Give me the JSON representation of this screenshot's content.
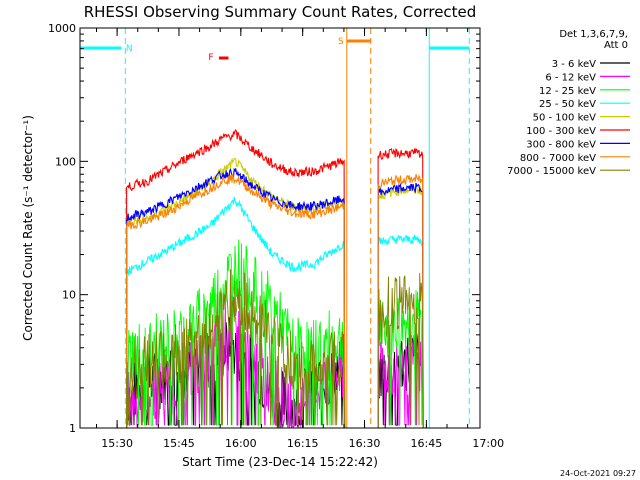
{
  "chart_data": {
    "type": "line",
    "title": "RHESSI Observing Summary Count Rates, Corrected",
    "xlabel": "Start Time (23-Dec-14 15:22:42)",
    "ylabel": "Corrected Count Rate (s⁻¹ detector⁻¹)",
    "yscale": "log",
    "ylim": [
      1,
      1000
    ],
    "xlim_minutes": [
      -1.7,
      95.3
    ],
    "x_tick_labels": [
      "15:30",
      "15:45",
      "16:00",
      "16:15",
      "16:30",
      "16:45",
      "17:00"
    ],
    "x_tick_minutes": [
      7.3,
      22.3,
      37.3,
      52.3,
      67.3,
      82.3,
      97.3
    ],
    "y_tick_labels": [
      "1",
      "10",
      "100",
      "1000"
    ],
    "y_tick_values": [
      1,
      10,
      100,
      1000
    ],
    "legend_header": [
      "Det 1,3,6,7,9,",
      "Att 0"
    ],
    "legend_position": "right",
    "timestamp": "24-Oct-2021 09:27",
    "segments": [
      [
        9.6,
        62.5
      ],
      [
        70.6,
        81.5
      ]
    ],
    "series": [
      {
        "name": "3 - 6 keV",
        "color": "#000000",
        "x": [
          10,
          20,
          30,
          35,
          40,
          45,
          50,
          55,
          60,
          62,
          71,
          75,
          80,
          81
        ],
        "values": [
          1.8,
          2.6,
          3.2,
          4.2,
          3.0,
          1.8,
          1.4,
          2.0,
          2.6,
          3.0,
          2.6,
          3.2,
          3.2,
          3.0
        ]
      },
      {
        "name": "6 - 12 keV",
        "color": "#ff00ff",
        "x": [
          10,
          20,
          30,
          35,
          40,
          45,
          50,
          55,
          60,
          62,
          71,
          75,
          80,
          81
        ],
        "values": [
          1.6,
          2.2,
          3.4,
          6.0,
          3.5,
          2.0,
          1.4,
          2.0,
          2.4,
          2.6,
          2.6,
          3.0,
          3.0,
          2.8
        ]
      },
      {
        "name": "12 - 25 keV",
        "color": "#00ff00",
        "x": [
          10,
          20,
          28,
          33,
          36,
          40,
          45,
          50,
          55,
          62,
          71,
          75,
          80,
          81
        ],
        "values": [
          3.6,
          4.5,
          7.0,
          12.0,
          17.0,
          12.0,
          8.0,
          4.0,
          4.0,
          4.8,
          5.0,
          6.0,
          6.5,
          6.2
        ]
      },
      {
        "name": "25 - 50 keV",
        "color": "#00ffff",
        "x": [
          10,
          15,
          20,
          25,
          30,
          33,
          36,
          40,
          45,
          50,
          55,
          62,
          71,
          75,
          80,
          81
        ],
        "values": [
          15,
          18,
          22,
          27,
          33,
          42,
          52,
          33,
          20,
          16,
          17,
          24,
          25,
          26,
          26,
          25
        ]
      },
      {
        "name": "50 - 100 keV",
        "color": "#cccc00",
        "x": [
          10,
          15,
          20,
          25,
          30,
          33,
          36,
          40,
          45,
          50,
          55,
          62,
          71,
          75,
          80,
          81
        ],
        "values": [
          35,
          38,
          45,
          55,
          70,
          85,
          100,
          72,
          54,
          45,
          44,
          50,
          55,
          60,
          62,
          60
        ]
      },
      {
        "name": "100 - 300 keV",
        "color": "#ff0000",
        "x": [
          10,
          15,
          20,
          25,
          30,
          33,
          36,
          40,
          45,
          50,
          55,
          62,
          71,
          75,
          80,
          81
        ],
        "values": [
          64,
          72,
          88,
          110,
          130,
          150,
          160,
          125,
          95,
          82,
          84,
          100,
          112,
          115,
          115,
          110
        ]
      },
      {
        "name": "300 - 800 keV",
        "color": "#0000ff",
        "x": [
          10,
          15,
          20,
          25,
          30,
          33,
          36,
          40,
          45,
          50,
          55,
          62,
          71,
          75,
          80,
          81
        ],
        "values": [
          38,
          42,
          50,
          60,
          72,
          80,
          82,
          66,
          52,
          46,
          46,
          52,
          58,
          62,
          64,
          62
        ]
      },
      {
        "name": "800 - 7000 keV",
        "color": "#ff8000",
        "x": [
          10,
          15,
          20,
          25,
          30,
          33,
          36,
          40,
          45,
          50,
          55,
          62,
          71,
          75,
          80,
          81
        ],
        "values": [
          33,
          36,
          42,
          52,
          63,
          72,
          75,
          60,
          47,
          41,
          40,
          46,
          68,
          72,
          74,
          72
        ]
      },
      {
        "name": "7000 - 15000 keV",
        "color": "#808000",
        "x": [
          10,
          20,
          28,
          33,
          36,
          40,
          45,
          50,
          55,
          62,
          71,
          75,
          80,
          81
        ],
        "values": [
          2.8,
          3.2,
          5.0,
          8.0,
          10.0,
          7.5,
          4.5,
          3.0,
          2.8,
          3.2,
          7.0,
          9.0,
          10.0,
          9.5
        ]
      }
    ],
    "annotations": [
      {
        "label": "N",
        "color": "#00ffff",
        "type": "night",
        "segments": [
          [
            -1.7,
            8.3
          ],
          [
            83.0,
            92.7
          ]
        ]
      },
      {
        "label": "S",
        "color": "#ff8000",
        "type": "saa",
        "segments": [
          [
            63.0,
            68.8
          ]
        ]
      },
      {
        "label": "F",
        "color": "#ff0000",
        "type": "flare",
        "segments": [
          [
            32.0,
            34.3
          ]
        ]
      }
    ],
    "vlines": [
      {
        "x": 9.3,
        "color": "#00ffff",
        "dashed": true
      },
      {
        "x": 63.0,
        "color": "#ff8000",
        "dashed": false
      },
      {
        "x": 68.8,
        "color": "#ff8000",
        "dashed": true
      },
      {
        "x": 83.0,
        "color": "#00ffff",
        "dashed": false
      },
      {
        "x": 92.7,
        "color": "#00ffff",
        "dashed": true
      }
    ],
    "grid": false
  }
}
